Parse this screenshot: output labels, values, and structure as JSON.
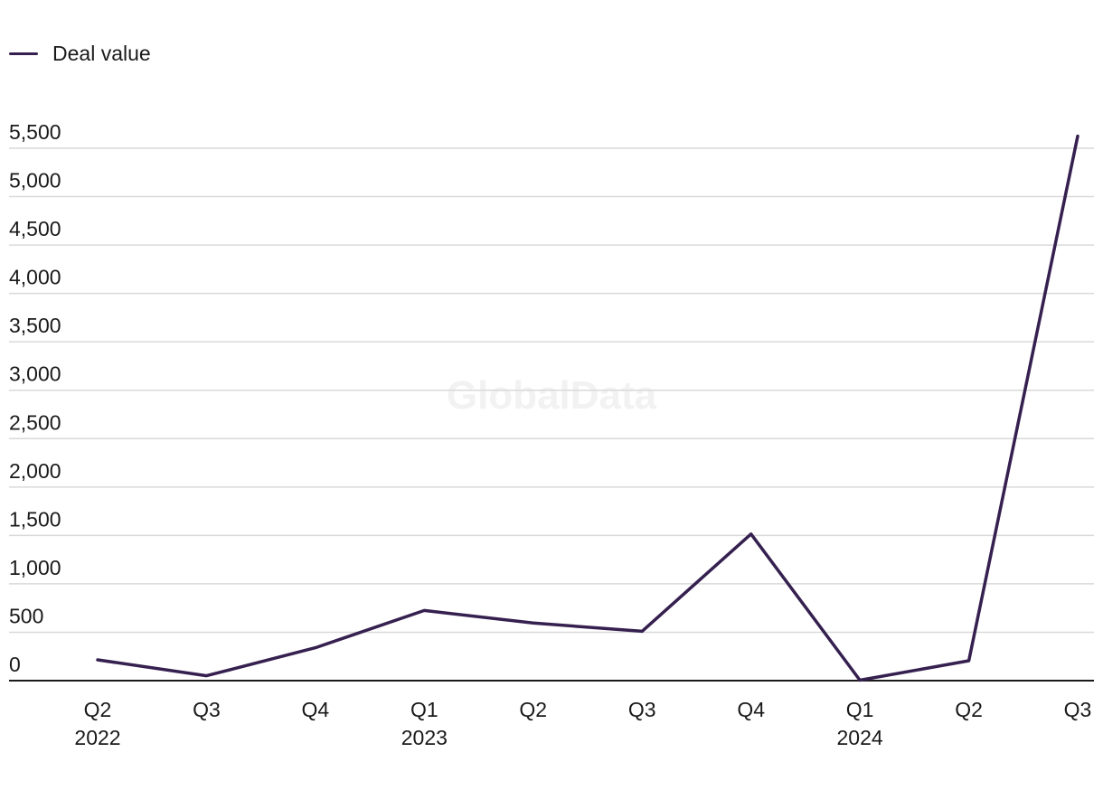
{
  "chart_data": {
    "type": "line",
    "categories": [
      "Q2 2022",
      "Q3 2022",
      "Q4 2022",
      "Q1 2023",
      "Q2 2023",
      "Q3 2023",
      "Q4 2023",
      "Q1 2024",
      "Q2 2024",
      "Q3 2024"
    ],
    "x_tick_labels": [
      {
        "quarter": "Q2",
        "year": "2022"
      },
      {
        "quarter": "Q3",
        "year": ""
      },
      {
        "quarter": "Q4",
        "year": ""
      },
      {
        "quarter": "Q1",
        "year": "2023"
      },
      {
        "quarter": "Q2",
        "year": ""
      },
      {
        "quarter": "Q3",
        "year": ""
      },
      {
        "quarter": "Q4",
        "year": ""
      },
      {
        "quarter": "Q1",
        "year": "2024"
      },
      {
        "quarter": "Q2",
        "year": ""
      },
      {
        "quarter": "Q3",
        "year": ""
      }
    ],
    "series": [
      {
        "name": "Deal value",
        "color": "#35204f",
        "values": [
          215,
          50,
          340,
          725,
          595,
          510,
          1515,
          5,
          205,
          5625
        ]
      }
    ],
    "y_ticks": [
      0,
      500,
      1000,
      1500,
      2000,
      2500,
      3000,
      3500,
      4000,
      4500,
      5000,
      5500
    ],
    "y_tick_labels": [
      "0",
      "500",
      "1,000",
      "1,500",
      "2,000",
      "2,500",
      "3,000",
      "3,500",
      "4,000",
      "4,500",
      "5,000",
      "5,500"
    ],
    "ylim": [
      0,
      5500
    ],
    "grid": "horizontal",
    "legend_position": "top-left",
    "title": "",
    "xlabel": "",
    "ylabel": "",
    "watermark": "GlobalData"
  }
}
